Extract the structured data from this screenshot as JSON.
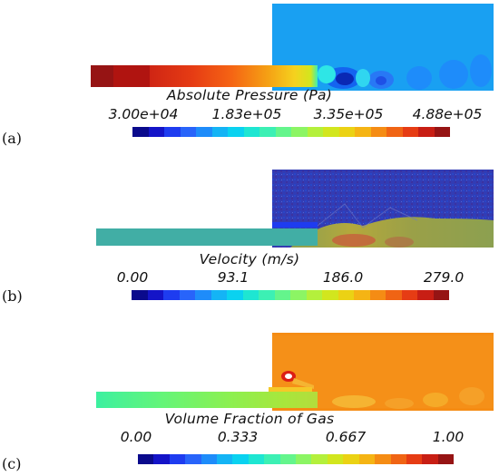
{
  "panels": [
    {
      "label": "(a)",
      "title": "Absolute Pressure (Pa)",
      "ticks": [
        "3.00e+04",
        "1.83e+05",
        "3.35e+05",
        "4.88e+05"
      ],
      "colormap": "jet"
    },
    {
      "label": "(b)",
      "title": "Velocity (m/s)",
      "ticks": [
        "0.00",
        "93.1",
        "186.0",
        "279.0"
      ],
      "colormap": "jet"
    },
    {
      "label": "(c)",
      "title": "Volume Fraction of Gas",
      "ticks": [
        "0.00",
        "0.333",
        "0.667",
        "1.00"
      ],
      "colormap": "jet"
    }
  ],
  "colors": {
    "jet": [
      "#0a0a8c",
      "#1414c8",
      "#1e3cf0",
      "#2864fa",
      "#1e8cfa",
      "#14b4f5",
      "#0ad2f0",
      "#1ee6d2",
      "#3cf0b4",
      "#64f58c",
      "#8cf564",
      "#b4f03c",
      "#d2e61e",
      "#ebd214",
      "#f5b414",
      "#f58c14",
      "#f06414",
      "#e63c14",
      "#c81e14",
      "#961414"
    ]
  }
}
